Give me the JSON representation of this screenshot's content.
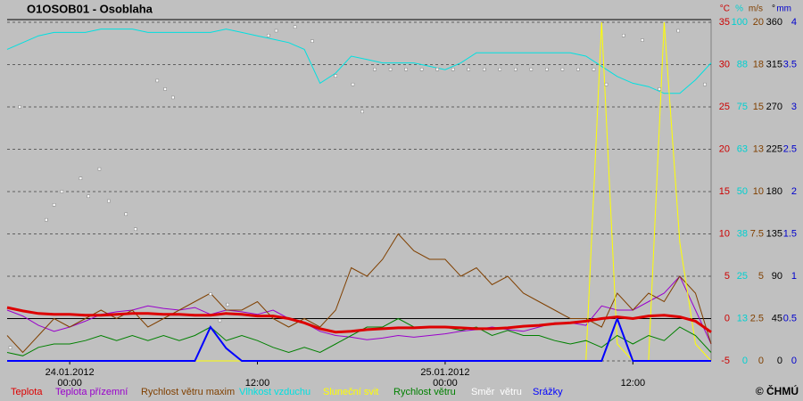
{
  "chart_data": {
    "type": "line",
    "title": "O1OSOB01 - Osoblaha",
    "copyright": "© ČHMÚ",
    "xlim": [
      -4,
      41
    ],
    "xticks": [
      {
        "value": 0,
        "label": "24.01.2012 00:00"
      },
      {
        "value": 12,
        "label": "12:00"
      },
      {
        "value": 24,
        "label": "25.01.2012 00:00"
      },
      {
        "value": 36,
        "label": "12:00"
      }
    ],
    "x": [
      -4,
      -3,
      -2,
      -1,
      0,
      1,
      2,
      3,
      4,
      5,
      6,
      7,
      8,
      9,
      10,
      11,
      12,
      13,
      14,
      15,
      16,
      17,
      18,
      19,
      20,
      21,
      22,
      23,
      24,
      25,
      26,
      27,
      28,
      29,
      30,
      31,
      32,
      33,
      34,
      35,
      36,
      37,
      38,
      39,
      40,
      41
    ],
    "ylim": [
      -5,
      35
    ],
    "yticks": [
      -5,
      0,
      5,
      10,
      15,
      20,
      25,
      30,
      35
    ],
    "y_unit": "°C",
    "y_color": "#cc0000",
    "y2lim": [
      0,
      100
    ],
    "y2ticks": [
      0,
      {
        "value": 12.5,
        "label": "13"
      },
      25,
      {
        "value": 37.5,
        "label": "38"
      },
      50,
      {
        "value": 62.5,
        "label": "63"
      },
      75,
      {
        "value": 87.5,
        "label": "88"
      },
      100
    ],
    "y2_unit": "%",
    "y2_color": "#00d0d0",
    "y3lim": [
      0,
      20
    ],
    "y3ticks": [
      0,
      2.5,
      5,
      7.5,
      10,
      {
        "value": 12.5,
        "label": "13"
      },
      15,
      {
        "value": 17.5,
        "label": "18"
      },
      20
    ],
    "y3_unit": "m/s",
    "y3_color": "#804000",
    "y4lim": [
      0,
      360
    ],
    "y4ticks": [
      0,
      45,
      90,
      135,
      180,
      225,
      270,
      315,
      360
    ],
    "y4_unit": "°",
    "y4_color": "#000000",
    "y5lim": [
      0,
      4
    ],
    "y5ticks": [
      0,
      0.5,
      1,
      1.5,
      2,
      2.5,
      3,
      3.5,
      4
    ],
    "y5_unit": "mm",
    "y5_color": "#0000cc",
    "grid": true,
    "zero_line": true,
    "series": [
      {
        "name": "Teplota",
        "color": "#dd0000",
        "axis": "y",
        "width": 3,
        "values": [
          1.3,
          0.9,
          0.6,
          0.5,
          0.5,
          0.4,
          0.4,
          0.5,
          0.6,
          0.6,
          0.5,
          0.5,
          0.4,
          0.4,
          0.6,
          0.5,
          0.3,
          0.3,
          0.0,
          -0.5,
          -1.2,
          -1.6,
          -1.5,
          -1.3,
          -1.2,
          -1.1,
          -1.1,
          -1.0,
          -1.0,
          -1.1,
          -1.2,
          -1.2,
          -1.1,
          -0.9,
          -0.8,
          -0.6,
          -0.5,
          -0.3,
          0.0,
          0.2,
          0.0,
          0.3,
          0.4,
          0.2,
          -0.3,
          -1.6
        ]
      },
      {
        "name": "Teplota přízemní",
        "color": "#9900cc",
        "axis": "y",
        "width": 1,
        "values": [
          1.0,
          0.3,
          -0.8,
          -1.5,
          -1.0,
          -0.3,
          0.5,
          0.8,
          1.0,
          1.5,
          1.2,
          1.0,
          1.3,
          0.5,
          1.0,
          0.8,
          0.5,
          1.0,
          0.0,
          -0.5,
          -1.5,
          -2.0,
          -2.2,
          -2.5,
          -2.3,
          -2.0,
          -2.2,
          -2.0,
          -1.8,
          -1.5,
          -1.3,
          -1.0,
          -1.3,
          -1.5,
          -1.0,
          -0.5,
          -0.5,
          -0.8,
          1.5,
          1.0,
          1.0,
          2.0,
          3.0,
          5.0,
          1.0,
          -3.0
        ]
      },
      {
        "name": "Rychlost větru maxim",
        "color": "#804000",
        "axis": "y3",
        "width": 1,
        "values": [
          1.5,
          0.5,
          1.5,
          2.5,
          2,
          2.5,
          3,
          2.5,
          3,
          2,
          2.5,
          3,
          3.5,
          4,
          3,
          3,
          3.5,
          2.5,
          2,
          2.5,
          2,
          3,
          5.5,
          5,
          6,
          7.5,
          6.5,
          6,
          6,
          5,
          5.5,
          4.5,
          5,
          4,
          3.5,
          3,
          2.5,
          2.5,
          2,
          4,
          3,
          4,
          3.5,
          5,
          4,
          1
        ]
      },
      {
        "name": "Vlhkost vzduchu",
        "color": "#00e0e0",
        "axis": "y2",
        "width": 1,
        "values": [
          92,
          94,
          96,
          97,
          97,
          97,
          98,
          98,
          98,
          97,
          97,
          97,
          97,
          97,
          98,
          97,
          96,
          95,
          94,
          92,
          82,
          85,
          90,
          89,
          88,
          88,
          88,
          87,
          86,
          88,
          91,
          91,
          91,
          91,
          91,
          91,
          91,
          90,
          87,
          84,
          82,
          81,
          79,
          79,
          83,
          88
        ]
      },
      {
        "name": "Sluneční svit",
        "color": "#ffff00",
        "axis": "y2",
        "width": 1,
        "values": [
          0,
          0,
          0,
          0,
          0,
          0,
          0,
          0,
          0,
          0,
          0,
          0,
          0,
          0,
          0,
          0,
          0,
          0,
          0,
          0,
          0,
          0,
          0,
          0,
          0,
          0,
          0,
          0,
          0,
          0,
          0,
          0,
          0,
          0,
          0,
          0,
          0,
          0,
          100,
          5,
          0,
          0,
          100,
          35,
          5,
          0
        ]
      },
      {
        "name": "Rychlost větru",
        "color": "#008000",
        "axis": "y3",
        "width": 1,
        "values": [
          0.5,
          0.3,
          0.8,
          1,
          1,
          1.2,
          1.5,
          1.2,
          1.5,
          1.2,
          1.5,
          1.2,
          1.5,
          2,
          1.2,
          1.5,
          1.2,
          0.8,
          0.5,
          0.8,
          0.5,
          1,
          1.5,
          2,
          2,
          2.5,
          2,
          2,
          2,
          1.8,
          2,
          1.5,
          1.8,
          1.5,
          1.5,
          1.2,
          1,
          1.2,
          0.8,
          1.5,
          1,
          1.5,
          1.2,
          2,
          1.5,
          0.5
        ]
      },
      {
        "name": "Směr  větru",
        "color": "#ffffff",
        "axis": "y4",
        "type": "scatter",
        "x": [
          -3.8,
          -3.2,
          -1.5,
          -1,
          -0.5,
          0.7,
          1.2,
          1.9,
          2.5,
          3.6,
          4.2,
          5.6,
          6.1,
          6.6,
          9,
          9.6,
          10.1,
          12.7,
          13.2,
          14.4,
          15.5,
          17,
          18.1,
          18.7,
          19.5,
          20.5,
          21.5,
          22.5,
          23.5,
          24.5,
          25.5,
          26.5,
          27.5,
          28.5,
          29.5,
          30.5,
          31.5,
          32.5,
          33.5,
          34.3,
          35.4,
          36.6,
          37.7,
          38.9,
          40.6
        ],
        "values": [
          14,
          270,
          150,
          166,
          180,
          194,
          175,
          204,
          170,
          156,
          140,
          298,
          289,
          280,
          71,
          43,
          60,
          346,
          351,
          355,
          340,
          303,
          294,
          265,
          310,
          310,
          310,
          310,
          310,
          310,
          310,
          310,
          310,
          310,
          310,
          310,
          310,
          310,
          310,
          294,
          346,
          341,
          289,
          351,
          294
        ]
      },
      {
        "name": "Srážky",
        "color": "#0000ff",
        "axis": "y5",
        "width": 2,
        "values": [
          0,
          0,
          0,
          0,
          0,
          0,
          0,
          0,
          0,
          0,
          0,
          0,
          0,
          0.4,
          0.15,
          0,
          0,
          0,
          0,
          0,
          0,
          0,
          0,
          0,
          0,
          0,
          0,
          0,
          0,
          0,
          0,
          0,
          0,
          0,
          0,
          0,
          0,
          0,
          0,
          0.5,
          0,
          0,
          0,
          0,
          0,
          0
        ]
      }
    ]
  }
}
